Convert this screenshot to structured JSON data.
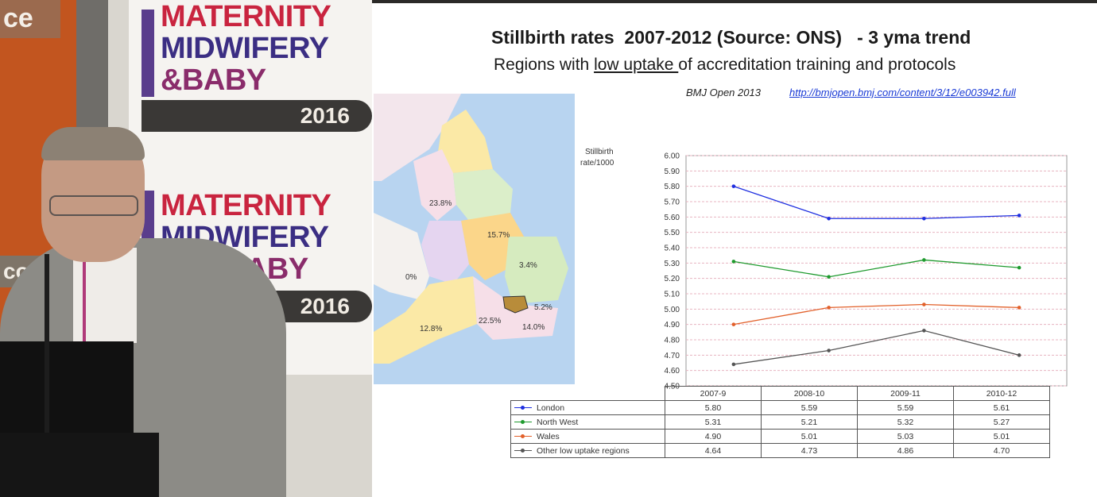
{
  "stage": {
    "orange_tag_top": "ce",
    "orange_tag_bottom": "co",
    "banner_line1": "MATERNITY",
    "banner_line2": "MIDWIFERY",
    "banner_line3": "&BABY",
    "banner_line3_partial": "BABY",
    "banner_year": "2016"
  },
  "slide": {
    "title": "Stillbirth rates  2007-2012 (Source: ONS)   - 3 yma trend",
    "subtitle_pre": "Regions with ",
    "subtitle_underlined": "low uptake ",
    "subtitle_post": "of accreditation training and protocols",
    "citation_journal": "BMJ Open 2013",
    "citation_url": "http://bmjopen.bmj.com/content/3/12/e003942.full",
    "map_labels": [
      "23.8%",
      "15.7%",
      "3.4%",
      "0%",
      "5.2%",
      "12.8%",
      "22.5%",
      "14.0%"
    ]
  },
  "colors": {
    "London": "#1f2fe0",
    "North West": "#1f9a2e",
    "Wales": "#e2602a",
    "Other low uptake regions": "#555555"
  },
  "chart_data": {
    "type": "line",
    "ylabel_line1": "Stillbirth",
    "ylabel_line2": "rate/1000",
    "categories": [
      "2007-9",
      "2008-10",
      "2009-11",
      "2010-12"
    ],
    "ylim": [
      4.5,
      6.0
    ],
    "yticks": [
      "6.00",
      "5.90",
      "5.80",
      "5.70",
      "5.60",
      "5.50",
      "5.40",
      "5.30",
      "5.20",
      "5.10",
      "5.00",
      "4.90",
      "4.80",
      "4.70",
      "4.60",
      "4.50"
    ],
    "grid": true,
    "series": [
      {
        "name": "London",
        "values": [
          5.8,
          5.59,
          5.59,
          5.61
        ],
        "labels": [
          "5.80",
          "5.59",
          "5.59",
          "5.61"
        ]
      },
      {
        "name": "North West",
        "values": [
          5.31,
          5.21,
          5.32,
          5.27
        ],
        "labels": [
          "5.31",
          "5.21",
          "5.32",
          "5.27"
        ]
      },
      {
        "name": "Wales",
        "values": [
          4.9,
          5.01,
          5.03,
          5.01
        ],
        "labels": [
          "4.90",
          "5.01",
          "5.03",
          "5.01"
        ]
      },
      {
        "name": "Other low uptake regions",
        "values": [
          4.64,
          4.73,
          4.86,
          4.7
        ],
        "labels": [
          "4.64",
          "4.73",
          "4.86",
          "4.70"
        ]
      }
    ]
  }
}
